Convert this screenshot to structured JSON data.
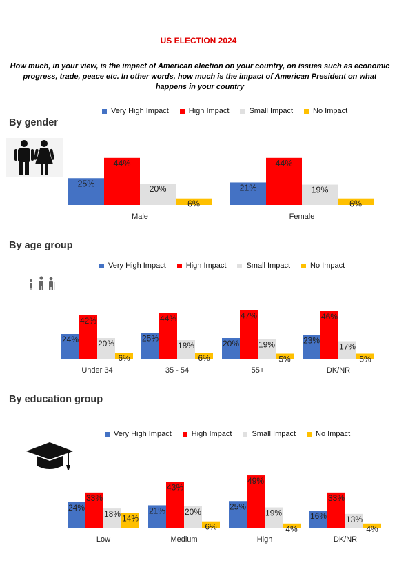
{
  "title": "US ELECTION 2024",
  "question": "How much, in your view, is the impact of American election on your country, on issues such as economic progress, trade, peace etc. In other words, how much is the impact of American President on what happens in your country",
  "colors": {
    "very_high": "#4472c4",
    "high": "#ff0000",
    "small": "#e0e0e0",
    "none": "#ffc000",
    "title": "#e00000"
  },
  "legend": [
    "Very High Impact",
    "High Impact",
    "Small Impact",
    "No Impact"
  ],
  "sections": {
    "gender": {
      "heading": "By gender",
      "icon": "man-woman-icon"
    },
    "age": {
      "heading": "By age group",
      "icon": "family-age-icon"
    },
    "education": {
      "heading": "By education group",
      "icon": "graduation-cap-icon"
    }
  },
  "chart_data": [
    {
      "type": "bar",
      "id": "gender",
      "categories": [
        "Male",
        "Female"
      ],
      "series": [
        {
          "name": "Very High Impact",
          "values": [
            25,
            21
          ]
        },
        {
          "name": "High Impact",
          "values": [
            44,
            44
          ]
        },
        {
          "name": "Small Impact",
          "values": [
            20,
            19
          ]
        },
        {
          "name": "No Impact",
          "values": [
            6,
            6
          ]
        }
      ]
    },
    {
      "type": "bar",
      "id": "age",
      "categories": [
        "Under 34",
        "35 - 54",
        "55+",
        "DK/NR"
      ],
      "series": [
        {
          "name": "Very High Impact",
          "values": [
            24,
            25,
            20,
            23
          ]
        },
        {
          "name": "High Impact",
          "values": [
            42,
            44,
            47,
            46
          ]
        },
        {
          "name": "Small Impact",
          "values": [
            20,
            18,
            19,
            17
          ]
        },
        {
          "name": "No Impact",
          "values": [
            6,
            6,
            5,
            5
          ]
        }
      ]
    },
    {
      "type": "bar",
      "id": "education",
      "categories": [
        "Low",
        "Medium",
        "High",
        "DK/NR"
      ],
      "series": [
        {
          "name": "Very High Impact",
          "values": [
            24,
            21,
            25,
            16
          ]
        },
        {
          "name": "High Impact",
          "values": [
            33,
            43,
            49,
            33
          ]
        },
        {
          "name": "Small Impact",
          "values": [
            18,
            20,
            19,
            13
          ]
        },
        {
          "name": "No Impact",
          "values": [
            14,
            6,
            4,
            4
          ]
        }
      ]
    }
  ]
}
